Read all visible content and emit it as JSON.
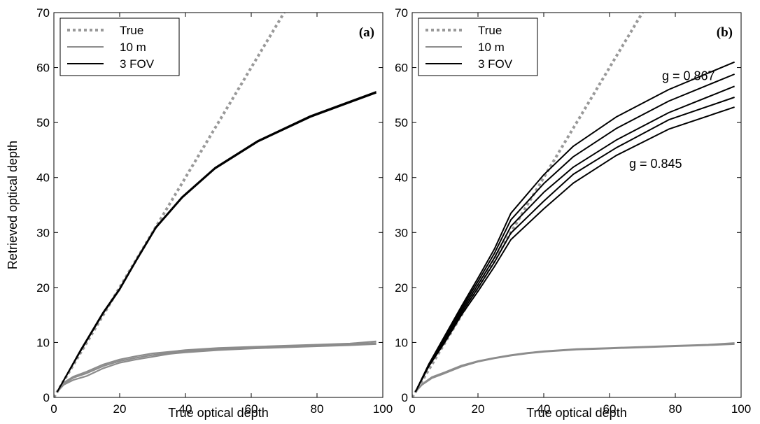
{
  "chart_data": [
    {
      "type": "line",
      "panel_label": "(a)",
      "xlabel": "True optical depth",
      "ylabel": "Retrieved optical depth",
      "xlim": [
        0,
        100
      ],
      "ylim": [
        0,
        70
      ],
      "xticks": [
        "0",
        "20",
        "40",
        "60",
        "80",
        "100"
      ],
      "yticks": [
        "0",
        "10",
        "20",
        "30",
        "40",
        "50",
        "60",
        "70"
      ],
      "legend": {
        "placement": "top-left",
        "entries": [
          "True",
          "10 m",
          "3 FOV"
        ]
      },
      "annotations": [],
      "series": [
        {
          "name": "True",
          "style": "dotted",
          "color": "#999999",
          "x": [
            0,
            70
          ],
          "y": [
            0,
            70
          ]
        },
        {
          "name": "10 m",
          "style": "solid",
          "color": "#8c8c8c",
          "x": [
            1,
            3,
            6,
            10,
            15,
            20,
            25,
            30,
            35,
            40,
            50,
            60,
            70,
            80,
            90,
            98
          ],
          "y": [
            1.0,
            2.5,
            3.6,
            4.4,
            5.7,
            6.6,
            7.2,
            7.7,
            8.1,
            8.4,
            8.8,
            9.0,
            9.2,
            9.4,
            9.6,
            9.9
          ]
        },
        {
          "name": "10 m",
          "style": "solid",
          "color": "#8c8c8c",
          "x": [
            1,
            3,
            6,
            10,
            15,
            20,
            25,
            30,
            35,
            40,
            50,
            60,
            70,
            80,
            90,
            98
          ],
          "y": [
            1.0,
            2.3,
            3.2,
            3.9,
            5.3,
            6.3,
            6.9,
            7.4,
            7.9,
            8.2,
            8.6,
            8.9,
            9.1,
            9.3,
            9.5,
            9.7
          ]
        },
        {
          "name": "10 m",
          "style": "solid",
          "color": "#8c8c8c",
          "x": [
            1,
            3,
            6,
            10,
            15,
            20,
            25,
            30,
            35,
            40,
            50,
            60,
            70,
            80,
            90,
            98
          ],
          "y": [
            1.0,
            2.7,
            3.8,
            4.7,
            6.0,
            6.9,
            7.5,
            8.0,
            8.3,
            8.6,
            9.0,
            9.2,
            9.4,
            9.6,
            9.8,
            10.2
          ]
        },
        {
          "name": "3 FOV",
          "style": "solid",
          "color": "#000000",
          "x": [
            1,
            8,
            15,
            20,
            25,
            31,
            39,
            49,
            62,
            78,
            98
          ],
          "y": [
            1,
            8.5,
            15.5,
            19.8,
            25,
            31,
            36.5,
            41.8,
            46.7,
            51.2,
            55.6
          ]
        },
        {
          "name": "3 FOV",
          "style": "solid",
          "color": "#000000",
          "x": [
            1,
            8,
            15,
            20,
            25,
            31,
            39,
            49,
            62,
            78,
            98
          ],
          "y": [
            1,
            8.3,
            15.3,
            19.6,
            24.8,
            30.8,
            36.3,
            41.6,
            46.5,
            51.0,
            55.4
          ]
        }
      ]
    },
    {
      "type": "line",
      "panel_label": "(b)",
      "xlabel": "True optical depth",
      "ylabel": "",
      "xlim": [
        0,
        100
      ],
      "ylim": [
        0,
        70
      ],
      "xticks": [
        "0",
        "20",
        "40",
        "60",
        "80",
        "100"
      ],
      "yticks": [
        "0",
        "10",
        "20",
        "30",
        "40",
        "50",
        "60",
        "70"
      ],
      "legend": {
        "placement": "top-left",
        "entries": [
          "True",
          "10 m",
          "3 FOV"
        ]
      },
      "annotations": [
        {
          "text": "g = 0.867",
          "x": 84,
          "y": 58.5
        },
        {
          "text": "g = 0.845",
          "x": 74,
          "y": 42.5
        }
      ],
      "series": [
        {
          "name": "True",
          "style": "dotted",
          "color": "#999999",
          "x": [
            0,
            70
          ],
          "y": [
            0,
            70
          ]
        },
        {
          "name": "10 m",
          "style": "solid",
          "color": "#8c8c8c",
          "x": [
            1,
            3,
            6,
            10,
            15,
            20,
            25,
            30,
            35,
            40,
            50,
            60,
            70,
            80,
            90,
            98
          ],
          "y": [
            1.0,
            2.4,
            3.7,
            4.6,
            5.8,
            6.6,
            7.2,
            7.7,
            8.1,
            8.4,
            8.8,
            9.0,
            9.2,
            9.4,
            9.6,
            9.9
          ]
        },
        {
          "name": "10 m",
          "style": "solid",
          "color": "#8c8c8c",
          "x": [
            1,
            3,
            6,
            10,
            15,
            20,
            25,
            30,
            35,
            40,
            50,
            60,
            70,
            80,
            90,
            98
          ],
          "y": [
            1.0,
            2.3,
            3.5,
            4.4,
            5.6,
            6.5,
            7.1,
            7.6,
            8.0,
            8.3,
            8.7,
            8.9,
            9.1,
            9.3,
            9.5,
            9.7
          ]
        },
        {
          "name": "3 FOV",
          "style": "solid",
          "color": "#000000",
          "x": [
            1,
            5,
            10,
            15,
            20,
            25,
            30,
            40,
            49,
            62,
            78,
            98
          ],
          "y": [
            1,
            6,
            11.3,
            16.6,
            21.7,
            27,
            33.5,
            40.5,
            45.7,
            51,
            56,
            61
          ]
        },
        {
          "name": "3 FOV",
          "style": "solid",
          "color": "#000000",
          "x": [
            1,
            5,
            10,
            15,
            20,
            25,
            30,
            40,
            49,
            62,
            78,
            98
          ],
          "y": [
            1,
            5.9,
            11.0,
            16.2,
            21.1,
            26.2,
            32.3,
            38.9,
            43.8,
            48.9,
            53.9,
            58.8
          ]
        },
        {
          "name": "3 FOV",
          "style": "solid",
          "color": "#000000",
          "x": [
            1,
            5,
            10,
            15,
            20,
            25,
            30,
            40,
            49,
            62,
            78,
            98
          ],
          "y": [
            1,
            5.8,
            10.7,
            15.8,
            20.5,
            25.4,
            31.1,
            37.3,
            41.9,
            46.8,
            51.8,
            56.6
          ]
        },
        {
          "name": "3 FOV",
          "style": "solid",
          "color": "#000000",
          "x": [
            1,
            5,
            10,
            15,
            20,
            25,
            30,
            40,
            49,
            62,
            78,
            98
          ],
          "y": [
            1,
            5.7,
            10.4,
            15.4,
            19.9,
            24.6,
            29.9,
            35.7,
            40.6,
            45.4,
            50.5,
            54.6
          ]
        },
        {
          "name": "3 FOV",
          "style": "solid",
          "color": "#000000",
          "x": [
            1,
            5,
            10,
            15,
            20,
            25,
            30,
            40,
            49,
            62,
            78,
            98
          ],
          "y": [
            1,
            5.6,
            10.1,
            15.0,
            19.3,
            23.8,
            28.7,
            34.3,
            39.0,
            44.0,
            48.8,
            52.8
          ]
        }
      ]
    }
  ]
}
